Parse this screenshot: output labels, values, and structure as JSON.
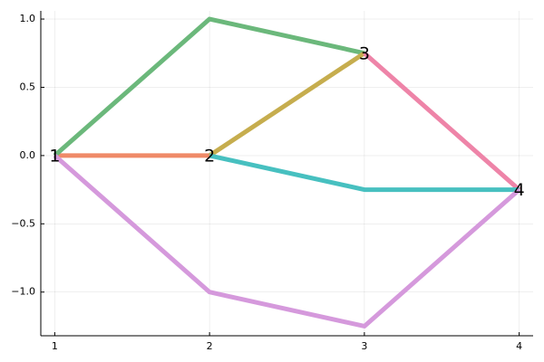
{
  "chart_data": {
    "type": "line",
    "xlim": [
      0.91,
      4.09
    ],
    "xticks": [
      1,
      2,
      3,
      4
    ],
    "ylim": [
      -1.32,
      1.06
    ],
    "yticks": [
      {
        "value": -1,
        "label": "−1.0"
      },
      {
        "value": -0.5,
        "label": "−0.5"
      },
      {
        "value": 0,
        "label": "0.0"
      },
      {
        "value": 0.5,
        "label": "0.5"
      },
      {
        "value": 1,
        "label": "1.0"
      }
    ],
    "grid": true,
    "series": [
      {
        "color": "#ef8a68",
        "x": [
          1,
          2
        ],
        "values": [
          0,
          0
        ]
      },
      {
        "color": "#6bb87b",
        "x": [
          1,
          2,
          3
        ],
        "values": [
          0,
          1,
          0.75
        ]
      },
      {
        "color": "#c6ad4e",
        "x": [
          2,
          3
        ],
        "values": [
          0,
          0.75
        ]
      },
      {
        "color": "#ee84a8",
        "x": [
          3,
          4
        ],
        "values": [
          0.75,
          -0.25
        ]
      },
      {
        "color": "#47c0c0",
        "x": [
          2,
          3,
          4
        ],
        "values": [
          0,
          -0.25,
          -0.25
        ]
      },
      {
        "color": "#d599dc",
        "x": [
          1,
          2,
          3,
          4
        ],
        "values": [
          0,
          -1,
          -1.25,
          -0.25
        ]
      }
    ],
    "annotations": [
      {
        "text": "1",
        "x": 1,
        "y": 0
      },
      {
        "text": "2",
        "x": 2,
        "y": 0
      },
      {
        "text": "3",
        "x": 3,
        "y": 0.75
      },
      {
        "text": "4",
        "x": 4,
        "y": -0.25
      }
    ]
  }
}
